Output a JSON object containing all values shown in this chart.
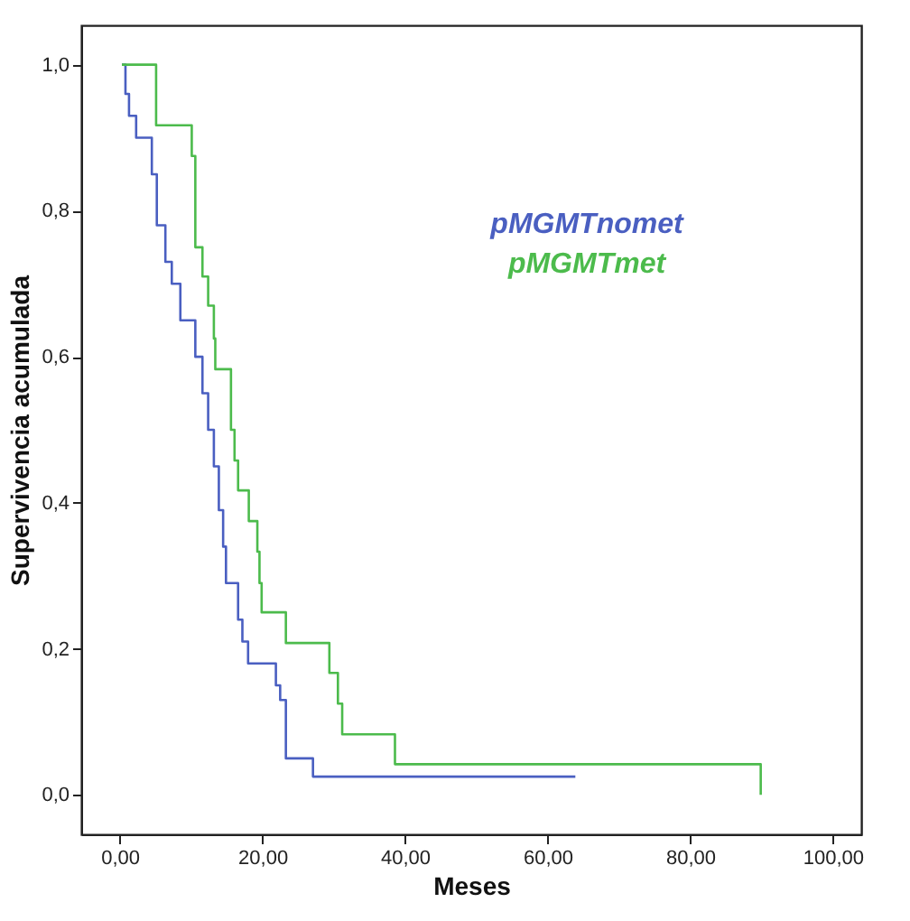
{
  "chart_data": {
    "type": "step",
    "xlabel": "Meses",
    "ylabel": "Supervivencia acumulada",
    "xlim": [
      -5.4,
      104
    ],
    "ylim": [
      -0.054,
      1.054
    ],
    "xticks": [
      {
        "value": 0,
        "label": "0,00"
      },
      {
        "value": 20,
        "label": "20,00"
      },
      {
        "value": 40,
        "label": "40,00"
      },
      {
        "value": 60,
        "label": "60,00"
      },
      {
        "value": 80,
        "label": "80,00"
      },
      {
        "value": 100,
        "label": "100,00"
      }
    ],
    "yticks": [
      {
        "value": 0,
        "label": "0,0"
      },
      {
        "value": 0.2,
        "label": "0,2"
      },
      {
        "value": 0.4,
        "label": "0,4"
      },
      {
        "value": 0.6,
        "label": "0,6"
      },
      {
        "value": 0.8,
        "label": "0,8"
      },
      {
        "value": 1,
        "label": "1,0"
      }
    ],
    "grid": false,
    "legend": "top right",
    "line_style": "solid",
    "marker": "none",
    "series": [
      {
        "name": "pMGMTnomet",
        "color": "#4a5fc1",
        "x": [
          0.3,
          0.8,
          1.3,
          2.3,
          4.5,
          5.2,
          6.4,
          7.3,
          8.5,
          10.6,
          11.6,
          12.4,
          13.2,
          13.9,
          14.5,
          14.9,
          16.6,
          17.2,
          18.0,
          21.9,
          22.5,
          23.3,
          27.1,
          63.9
        ],
        "values": [
          1.0,
          0.96,
          0.93,
          0.9,
          0.85,
          0.78,
          0.73,
          0.7,
          0.65,
          0.6,
          0.55,
          0.5,
          0.45,
          0.39,
          0.34,
          0.29,
          0.24,
          0.21,
          0.18,
          0.15,
          0.13,
          0.05,
          0.025,
          0.025
        ]
      },
      {
        "name": "pMGMTmet",
        "color": "#4cbb4c",
        "x": [
          0.3,
          5.1,
          10.1,
          10.6,
          11.6,
          12.4,
          13.2,
          13.4,
          15.6,
          16.1,
          16.6,
          18.1,
          19.3,
          19.6,
          19.9,
          23.3,
          29.4,
          30.6,
          31.2,
          38.6,
          89.9
        ],
        "values": [
          1.0,
          0.917,
          0.875,
          0.75,
          0.71,
          0.67,
          0.625,
          0.583,
          0.5,
          0.458,
          0.417,
          0.375,
          0.333,
          0.29,
          0.25,
          0.208,
          0.167,
          0.125,
          0.083,
          0.042,
          0.0
        ]
      }
    ]
  }
}
